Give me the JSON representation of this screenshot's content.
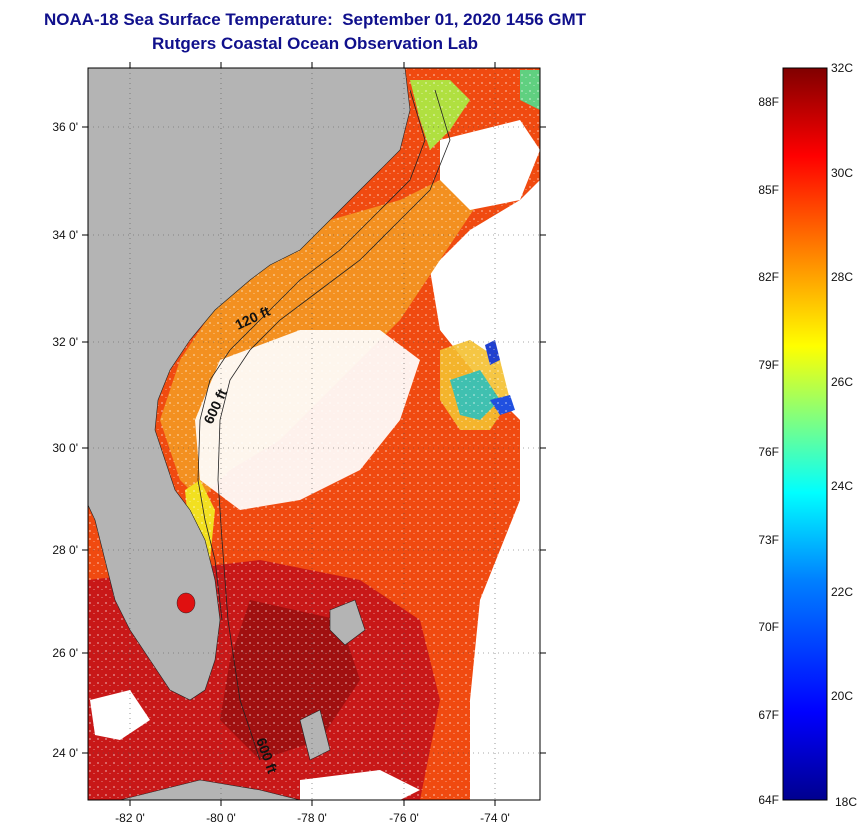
{
  "header": {
    "title": "NOAA-18 Sea Surface Temperature:  September 01, 2020 1456 GMT",
    "subtitle": "Rutgers Coastal Ocean Observation Lab"
  },
  "map": {
    "lat_ticks": [
      "36 0'",
      "34 0'",
      "32 0'",
      "30 0'",
      "28 0'",
      "26 0'",
      "24 0'"
    ],
    "lon_ticks": [
      "-82 0'",
      "-80 0'",
      "-78 0'",
      "-76 0'",
      "-74 0'"
    ],
    "contour_labels": [
      "120 ft",
      "600 ft",
      "600 ft"
    ],
    "colors": {
      "land": "#b4b4b4",
      "cloud": "#ffffff",
      "warm_sea": "#f04a10",
      "hot_sea": "#a01010",
      "mild_sea": "#f39020",
      "cool_sea": "#f2e020"
    }
  },
  "colorbar": {
    "fahrenheit_labels": [
      "88F",
      "85F",
      "82F",
      "79F",
      "76F",
      "73F",
      "70F",
      "67F",
      "64F"
    ],
    "celsius_labels": [
      "32C",
      "30C",
      "28C",
      "26C",
      "24C",
      "22C",
      "20C",
      "18C"
    ],
    "gradient": [
      "#00008f",
      "#0000ff",
      "#0080ff",
      "#00ffff",
      "#80ff80",
      "#ffff00",
      "#ff8000",
      "#ff0000",
      "#800000"
    ]
  }
}
